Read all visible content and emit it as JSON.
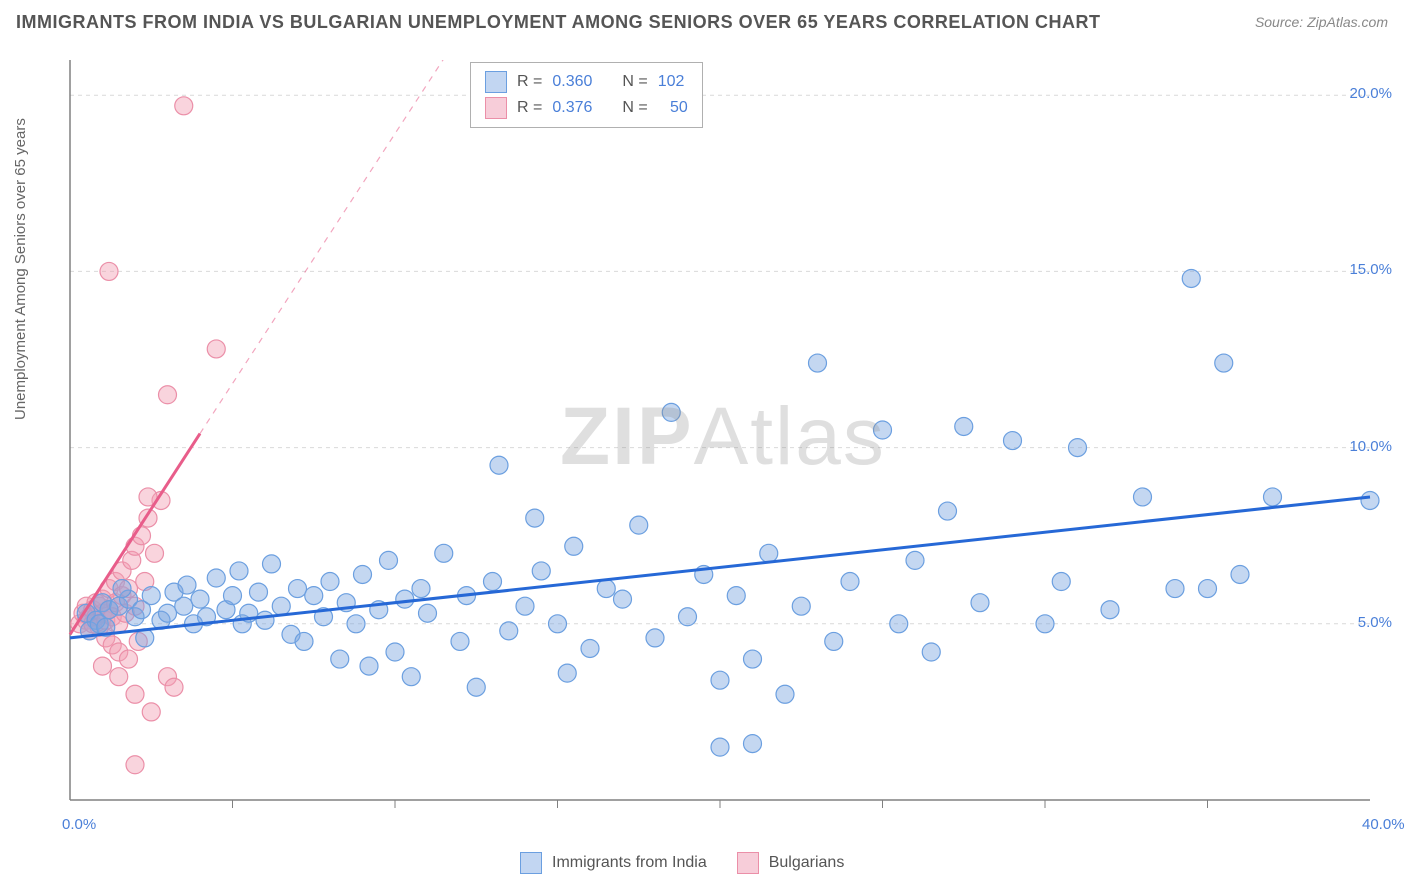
{
  "chart": {
    "title": "IMMIGRANTS FROM INDIA VS BULGARIAN UNEMPLOYMENT AMONG SENIORS OVER 65 YEARS CORRELATION CHART",
    "source_label": "Source:",
    "source_name": "ZipAtlas.com",
    "y_axis_label": "Unemployment Among Seniors over 65 years",
    "watermark_bold": "ZIP",
    "watermark_light": "Atlas",
    "type": "scatter",
    "plot_background": "#ffffff",
    "grid_color": "#d9d9d9",
    "axis_line_color": "#808080",
    "title_color": "#555555",
    "label_color": "#666666",
    "tick_label_color": "#4a7fd8",
    "tick_fontsize": 15,
    "title_fontsize": 18,
    "x_axis": {
      "min": 0.0,
      "max": 40.0,
      "tick_positions": [
        0.0,
        5.0,
        10.0,
        15.0,
        20.0,
        25.0,
        30.0,
        35.0,
        40.0
      ],
      "tick_labels": [
        "0.0%",
        "",
        "",
        "",
        "",
        "",
        "",
        "",
        "40.0%"
      ],
      "gridlines": [
        5.0,
        10.0,
        15.0,
        20.0,
        25.0,
        30.0,
        35.0
      ]
    },
    "y_axis": {
      "min": 0.0,
      "max": 21.0,
      "tick_positions": [
        5.0,
        10.0,
        15.0,
        20.0
      ],
      "tick_labels": [
        "5.0%",
        "10.0%",
        "15.0%",
        "20.0%"
      ],
      "gridlines": [
        5.0,
        10.0,
        15.0,
        20.0
      ]
    },
    "series": [
      {
        "name": "Immigrants from India",
        "legend_key": "immigrants_india",
        "marker_color_fill": "rgba(124,166,224,0.45)",
        "marker_color_stroke": "#6b9fe0",
        "marker_radius": 9,
        "regression_color": "#2668d6",
        "regression_width": 3,
        "regression_start": {
          "x": 0.0,
          "y": 4.6
        },
        "regression_end": {
          "x": 40.0,
          "y": 8.6
        },
        "r_value": "0.360",
        "n_value": "102",
        "points": [
          [
            0.5,
            5.3
          ],
          [
            0.8,
            5.1
          ],
          [
            1.0,
            5.6
          ],
          [
            0.6,
            4.8
          ],
          [
            1.2,
            5.4
          ],
          [
            0.9,
            5.0
          ],
          [
            1.5,
            5.5
          ],
          [
            1.1,
            4.9
          ],
          [
            1.8,
            5.7
          ],
          [
            2.0,
            5.2
          ],
          [
            1.6,
            6.0
          ],
          [
            2.2,
            5.4
          ],
          [
            2.5,
            5.8
          ],
          [
            2.8,
            5.1
          ],
          [
            2.3,
            4.6
          ],
          [
            3.0,
            5.3
          ],
          [
            3.2,
            5.9
          ],
          [
            3.5,
            5.5
          ],
          [
            3.8,
            5.0
          ],
          [
            3.6,
            6.1
          ],
          [
            4.0,
            5.7
          ],
          [
            4.2,
            5.2
          ],
          [
            4.5,
            6.3
          ],
          [
            4.8,
            5.4
          ],
          [
            5.0,
            5.8
          ],
          [
            5.3,
            5.0
          ],
          [
            5.2,
            6.5
          ],
          [
            5.5,
            5.3
          ],
          [
            5.8,
            5.9
          ],
          [
            6.0,
            5.1
          ],
          [
            6.2,
            6.7
          ],
          [
            6.5,
            5.5
          ],
          [
            6.8,
            4.7
          ],
          [
            7.0,
            6.0
          ],
          [
            7.2,
            4.5
          ],
          [
            7.5,
            5.8
          ],
          [
            7.8,
            5.2
          ],
          [
            8.0,
            6.2
          ],
          [
            8.3,
            4.0
          ],
          [
            8.5,
            5.6
          ],
          [
            8.8,
            5.0
          ],
          [
            9.0,
            6.4
          ],
          [
            9.2,
            3.8
          ],
          [
            9.5,
            5.4
          ],
          [
            9.8,
            6.8
          ],
          [
            10.0,
            4.2
          ],
          [
            10.3,
            5.7
          ],
          [
            10.5,
            3.5
          ],
          [
            10.8,
            6.0
          ],
          [
            11.0,
            5.3
          ],
          [
            11.5,
            7.0
          ],
          [
            12.0,
            4.5
          ],
          [
            12.2,
            5.8
          ],
          [
            12.5,
            3.2
          ],
          [
            13.0,
            6.2
          ],
          [
            13.2,
            9.5
          ],
          [
            13.5,
            4.8
          ],
          [
            14.0,
            5.5
          ],
          [
            14.3,
            8.0
          ],
          [
            14.5,
            6.5
          ],
          [
            15.0,
            5.0
          ],
          [
            15.3,
            3.6
          ],
          [
            15.5,
            7.2
          ],
          [
            16.0,
            4.3
          ],
          [
            16.5,
            6.0
          ],
          [
            17.0,
            5.7
          ],
          [
            17.5,
            7.8
          ],
          [
            18.0,
            4.6
          ],
          [
            18.5,
            11.0
          ],
          [
            19.0,
            5.2
          ],
          [
            19.5,
            6.4
          ],
          [
            20.0,
            3.4
          ],
          [
            20.5,
            5.8
          ],
          [
            21.0,
            4.0
          ],
          [
            21.5,
            7.0
          ],
          [
            22.0,
            3.0
          ],
          [
            22.5,
            5.5
          ],
          [
            23.0,
            12.4
          ],
          [
            23.5,
            4.5
          ],
          [
            24.0,
            6.2
          ],
          [
            25.0,
            10.5
          ],
          [
            25.5,
            5.0
          ],
          [
            26.0,
            6.8
          ],
          [
            26.5,
            4.2
          ],
          [
            27.0,
            8.2
          ],
          [
            27.5,
            10.6
          ],
          [
            28.0,
            5.6
          ],
          [
            29.0,
            10.2
          ],
          [
            30.0,
            5.0
          ],
          [
            30.5,
            6.2
          ],
          [
            31.0,
            10.0
          ],
          [
            32.0,
            5.4
          ],
          [
            33.0,
            8.6
          ],
          [
            34.0,
            6.0
          ],
          [
            34.5,
            14.8
          ],
          [
            35.0,
            6.0
          ],
          [
            35.5,
            12.4
          ],
          [
            36.0,
            6.4
          ],
          [
            37.0,
            8.6
          ],
          [
            40.0,
            8.5
          ],
          [
            20.0,
            1.5
          ],
          [
            21.0,
            1.6
          ]
        ]
      },
      {
        "name": "Bulgarians",
        "legend_key": "bulgarians",
        "marker_color_fill": "rgba(242,160,180,0.45)",
        "marker_color_stroke": "#eb8fa8",
        "marker_radius": 9,
        "regression_color": "#e85d8a",
        "regression_width": 3,
        "regression_start": {
          "x": 0.0,
          "y": 4.7
        },
        "regression_end": {
          "x": 4.0,
          "y": 10.4
        },
        "regression_dash_end": {
          "x": 15.0,
          "y": 26.0
        },
        "r_value": "0.376",
        "n_value": "50",
        "points": [
          [
            0.3,
            5.0
          ],
          [
            0.4,
            5.3
          ],
          [
            0.5,
            5.1
          ],
          [
            0.5,
            5.5
          ],
          [
            0.6,
            5.2
          ],
          [
            0.6,
            4.8
          ],
          [
            0.7,
            5.4
          ],
          [
            0.7,
            5.0
          ],
          [
            0.8,
            5.6
          ],
          [
            0.8,
            5.2
          ],
          [
            0.9,
            5.5
          ],
          [
            0.9,
            4.9
          ],
          [
            1.0,
            5.3
          ],
          [
            1.0,
            5.7
          ],
          [
            1.1,
            5.1
          ],
          [
            1.1,
            4.6
          ],
          [
            1.2,
            5.4
          ],
          [
            1.2,
            6.0
          ],
          [
            1.3,
            5.2
          ],
          [
            1.3,
            4.4
          ],
          [
            1.4,
            5.6
          ],
          [
            1.4,
            6.2
          ],
          [
            1.5,
            5.0
          ],
          [
            1.5,
            4.2
          ],
          [
            1.6,
            5.8
          ],
          [
            1.6,
            6.5
          ],
          [
            1.7,
            5.3
          ],
          [
            1.8,
            4.0
          ],
          [
            1.8,
            6.0
          ],
          [
            1.9,
            6.8
          ],
          [
            2.0,
            5.5
          ],
          [
            2.0,
            7.2
          ],
          [
            2.1,
            4.5
          ],
          [
            2.2,
            7.5
          ],
          [
            2.3,
            6.2
          ],
          [
            2.4,
            8.0
          ],
          [
            2.6,
            7.0
          ],
          [
            2.8,
            8.5
          ],
          [
            3.0,
            3.5
          ],
          [
            3.2,
            3.2
          ],
          [
            1.0,
            3.8
          ],
          [
            1.5,
            3.5
          ],
          [
            2.0,
            3.0
          ],
          [
            2.5,
            2.5
          ],
          [
            3.0,
            11.5
          ],
          [
            3.5,
            19.7
          ],
          [
            1.2,
            15.0
          ],
          [
            2.4,
            8.6
          ],
          [
            4.5,
            12.8
          ],
          [
            2.0,
            1.0
          ]
        ]
      }
    ],
    "legend_top": {
      "R_label": "R =",
      "N_label": "N =",
      "swatch_blue_fill": "#c2d6f2",
      "swatch_blue_stroke": "#6b9fe0",
      "swatch_pink_fill": "#f7cdd9",
      "swatch_pink_stroke": "#eb8fa8"
    },
    "legend_bottom": {
      "item1_label": "Immigrants from India",
      "item2_label": "Bulgarians"
    }
  }
}
